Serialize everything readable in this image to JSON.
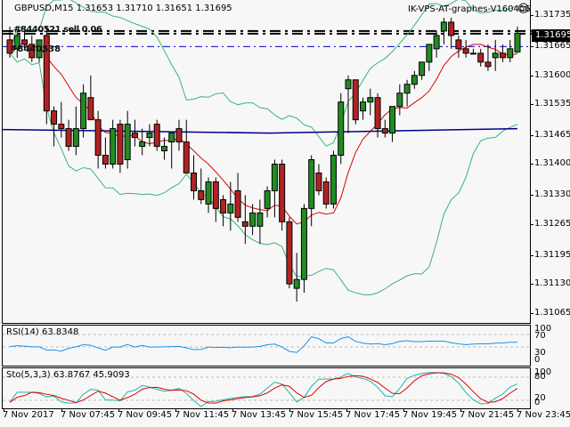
{
  "header": {
    "symbol_info": "GBPUSD,M15  1.31653 1.31710 1.31651 1.31695",
    "watermark": "IK-VPS-AT-graphes-V160406",
    "smiley": "☺"
  },
  "overlay_text": {
    "line1": "#8440521 sell 0.06",
    "line2": "#8440538"
  },
  "price_axis": {
    "labels": [
      "1.31735",
      "1.31665",
      "1.31600",
      "1.31535",
      "1.31465",
      "1.31400",
      "1.31330",
      "1.31265",
      "1.31195",
      "1.31130",
      "1.31065"
    ],
    "current_price": "1.31695",
    "current_bg": "#000000"
  },
  "rsi": {
    "label": "RSI(14) 63.8348",
    "axis": [
      "100",
      "70",
      "30",
      "0"
    ],
    "color": "#1e90e6"
  },
  "sto": {
    "label": "Sto(5,3,3) 63.8767 45.9093",
    "axis": [
      "100",
      "80",
      "20",
      "0"
    ],
    "main_color": "#20b2aa",
    "signal_color": "#e00000"
  },
  "time_axis": [
    "7 Nov 2017",
    "7 Nov 07:45",
    "7 Nov 09:45",
    "7 Nov 11:45",
    "7 Nov 13:45",
    "7 Nov 15:45",
    "7 Nov 17:45",
    "7 Nov 19:45",
    "7 Nov 21:45",
    "7 Nov 23:45"
  ],
  "colors": {
    "bull": "#228b22",
    "bear": "#b22222",
    "bollinger": "#3cb371",
    "ma_fast": "#e00000",
    "ma_slow": "#00008b",
    "order_line": "#0000cd"
  },
  "chart_data": {
    "type": "candlestick",
    "title": "GBPUSD,M15",
    "ohlc_header": {
      "open": 1.31653,
      "high": 1.3171,
      "low": 1.31651,
      "close": 1.31695
    },
    "ylim": [
      1.3104,
      1.3177
    ],
    "yticks": [
      1.31735,
      1.31665,
      1.316,
      1.31535,
      1.31465,
      1.314,
      1.3133,
      1.31265,
      1.31195,
      1.3113,
      1.31065
    ],
    "current_price": 1.31695,
    "xticks": [
      "7 Nov 2017",
      "7 Nov 07:45",
      "7 Nov 09:45",
      "7 Nov 11:45",
      "7 Nov 13:45",
      "7 Nov 15:45",
      "7 Nov 17:45",
      "7 Nov 19:45",
      "7 Nov 21:45",
      "7 Nov 23:45"
    ],
    "indicators": [
      "Bollinger Bands",
      "Moving Average (red)",
      "Moving Average (navy)",
      "RSI(14) 63.8348",
      "Stochastic(5,3,3) 63.8767 45.9093"
    ],
    "candles": [
      {
        "o": 1.3168,
        "h": 1.3171,
        "l": 1.3164,
        "c": 1.3165
      },
      {
        "o": 1.3166,
        "h": 1.317,
        "l": 1.3164,
        "c": 1.3169
      },
      {
        "o": 1.3168,
        "h": 1.317,
        "l": 1.3166,
        "c": 1.3167
      },
      {
        "o": 1.3167,
        "h": 1.3169,
        "l": 1.3163,
        "c": 1.3164
      },
      {
        "o": 1.3164,
        "h": 1.3168,
        "l": 1.3163,
        "c": 1.3168
      },
      {
        "o": 1.3169,
        "h": 1.3171,
        "l": 1.3149,
        "c": 1.3152
      },
      {
        "o": 1.3152,
        "h": 1.3153,
        "l": 1.3144,
        "c": 1.3149
      },
      {
        "o": 1.3149,
        "h": 1.3154,
        "l": 1.3146,
        "c": 1.3148
      },
      {
        "o": 1.3148,
        "h": 1.315,
        "l": 1.3143,
        "c": 1.3144
      },
      {
        "o": 1.3144,
        "h": 1.3153,
        "l": 1.3142,
        "c": 1.3148
      },
      {
        "o": 1.3148,
        "h": 1.3158,
        "l": 1.3146,
        "c": 1.3156
      },
      {
        "o": 1.3155,
        "h": 1.316,
        "l": 1.3151,
        "c": 1.315
      },
      {
        "o": 1.315,
        "h": 1.3152,
        "l": 1.3139,
        "c": 1.3142
      },
      {
        "o": 1.3142,
        "h": 1.3146,
        "l": 1.3139,
        "c": 1.314
      },
      {
        "o": 1.314,
        "h": 1.315,
        "l": 1.3139,
        "c": 1.3148
      },
      {
        "o": 1.3149,
        "h": 1.315,
        "l": 1.3138,
        "c": 1.314
      },
      {
        "o": 1.3141,
        "h": 1.3152,
        "l": 1.3139,
        "c": 1.3149
      },
      {
        "o": 1.3147,
        "h": 1.315,
        "l": 1.3144,
        "c": 1.3146
      },
      {
        "o": 1.3144,
        "h": 1.3148,
        "l": 1.3142,
        "c": 1.3145
      },
      {
        "o": 1.3146,
        "h": 1.3149,
        "l": 1.3144,
        "c": 1.3147
      },
      {
        "o": 1.3149,
        "h": 1.315,
        "l": 1.3143,
        "c": 1.3144
      },
      {
        "o": 1.3143,
        "h": 1.3146,
        "l": 1.3141,
        "c": 1.3144
      },
      {
        "o": 1.3145,
        "h": 1.3147,
        "l": 1.3139,
        "c": 1.3147
      },
      {
        "o": 1.3148,
        "h": 1.315,
        "l": 1.3143,
        "c": 1.3145
      },
      {
        "o": 1.3145,
        "h": 1.315,
        "l": 1.3139,
        "c": 1.3138
      },
      {
        "o": 1.3138,
        "h": 1.3142,
        "l": 1.3132,
        "c": 1.3134
      },
      {
        "o": 1.3134,
        "h": 1.3139,
        "l": 1.3131,
        "c": 1.3132
      },
      {
        "o": 1.3131,
        "h": 1.3137,
        "l": 1.3129,
        "c": 1.3136
      },
      {
        "o": 1.3136,
        "h": 1.3137,
        "l": 1.3127,
        "c": 1.313
      },
      {
        "o": 1.3132,
        "h": 1.3133,
        "l": 1.3126,
        "c": 1.3129
      },
      {
        "o": 1.3129,
        "h": 1.3136,
        "l": 1.3125,
        "c": 1.3131
      },
      {
        "o": 1.3134,
        "h": 1.3138,
        "l": 1.3127,
        "c": 1.3128
      },
      {
        "o": 1.3127,
        "h": 1.3133,
        "l": 1.3122,
        "c": 1.3126
      },
      {
        "o": 1.3126,
        "h": 1.3131,
        "l": 1.3124,
        "c": 1.3129
      },
      {
        "o": 1.3126,
        "h": 1.3132,
        "l": 1.3122,
        "c": 1.3129
      },
      {
        "o": 1.313,
        "h": 1.3135,
        "l": 1.3128,
        "c": 1.3134
      },
      {
        "o": 1.3134,
        "h": 1.3141,
        "l": 1.3128,
        "c": 1.314
      },
      {
        "o": 1.314,
        "h": 1.3141,
        "l": 1.3125,
        "c": 1.3127
      },
      {
        "o": 1.3127,
        "h": 1.3128,
        "l": 1.3112,
        "c": 1.3113
      },
      {
        "o": 1.3112,
        "h": 1.312,
        "l": 1.3109,
        "c": 1.3114
      },
      {
        "o": 1.3114,
        "h": 1.3131,
        "l": 1.3111,
        "c": 1.313
      },
      {
        "o": 1.313,
        "h": 1.3142,
        "l": 1.3126,
        "c": 1.3141
      },
      {
        "o": 1.3138,
        "h": 1.314,
        "l": 1.3133,
        "c": 1.3134
      },
      {
        "o": 1.3136,
        "h": 1.3137,
        "l": 1.313,
        "c": 1.3131
      },
      {
        "o": 1.3131,
        "h": 1.3143,
        "l": 1.313,
        "c": 1.3142
      },
      {
        "o": 1.3142,
        "h": 1.3156,
        "l": 1.314,
        "c": 1.3154
      },
      {
        "o": 1.3157,
        "h": 1.316,
        "l": 1.3147,
        "c": 1.3159
      },
      {
        "o": 1.3159,
        "h": 1.3156,
        "l": 1.3149,
        "c": 1.315
      },
      {
        "o": 1.3152,
        "h": 1.3155,
        "l": 1.315,
        "c": 1.3154
      },
      {
        "o": 1.3154,
        "h": 1.3157,
        "l": 1.3151,
        "c": 1.3155
      },
      {
        "o": 1.3155,
        "h": 1.3156,
        "l": 1.3146,
        "c": 1.3148
      },
      {
        "o": 1.3148,
        "h": 1.315,
        "l": 1.3146,
        "c": 1.3147
      },
      {
        "o": 1.3147,
        "h": 1.3153,
        "l": 1.3145,
        "c": 1.3153
      },
      {
        "o": 1.3153,
        "h": 1.3158,
        "l": 1.3151,
        "c": 1.3156
      },
      {
        "o": 1.3156,
        "h": 1.3159,
        "l": 1.3153,
        "c": 1.3158
      },
      {
        "o": 1.3158,
        "h": 1.3161,
        "l": 1.3157,
        "c": 1.316
      },
      {
        "o": 1.316,
        "h": 1.3163,
        "l": 1.3159,
        "c": 1.3163
      },
      {
        "o": 1.3163,
        "h": 1.3167,
        "l": 1.3161,
        "c": 1.3167
      },
      {
        "o": 1.3166,
        "h": 1.317,
        "l": 1.3164,
        "c": 1.3169
      },
      {
        "o": 1.317,
        "h": 1.3173,
        "l": 1.3167,
        "c": 1.3172
      },
      {
        "o": 1.3172,
        "h": 1.3173,
        "l": 1.3166,
        "c": 1.3169
      },
      {
        "o": 1.3168,
        "h": 1.3169,
        "l": 1.3164,
        "c": 1.3166
      },
      {
        "o": 1.3166,
        "h": 1.3168,
        "l": 1.3164,
        "c": 1.3165
      },
      {
        "o": 1.3165,
        "h": 1.3166,
        "l": 1.3165,
        "c": 1.3165
      },
      {
        "o": 1.3165,
        "h": 1.3166,
        "l": 1.3162,
        "c": 1.3163
      },
      {
        "o": 1.3163,
        "h": 1.3167,
        "l": 1.3161,
        "c": 1.3162
      },
      {
        "o": 1.3164,
        "h": 1.3168,
        "l": 1.3161,
        "c": 1.3165
      },
      {
        "o": 1.3165,
        "h": 1.3167,
        "l": 1.3163,
        "c": 1.3164
      },
      {
        "o": 1.3164,
        "h": 1.3168,
        "l": 1.3163,
        "c": 1.3166
      },
      {
        "o": 1.31653,
        "h": 1.3171,
        "l": 1.31651,
        "c": 1.31695
      }
    ],
    "rsi_value": 63.8348,
    "stochastic": {
      "main": 63.8767,
      "signal": 45.9093
    }
  }
}
